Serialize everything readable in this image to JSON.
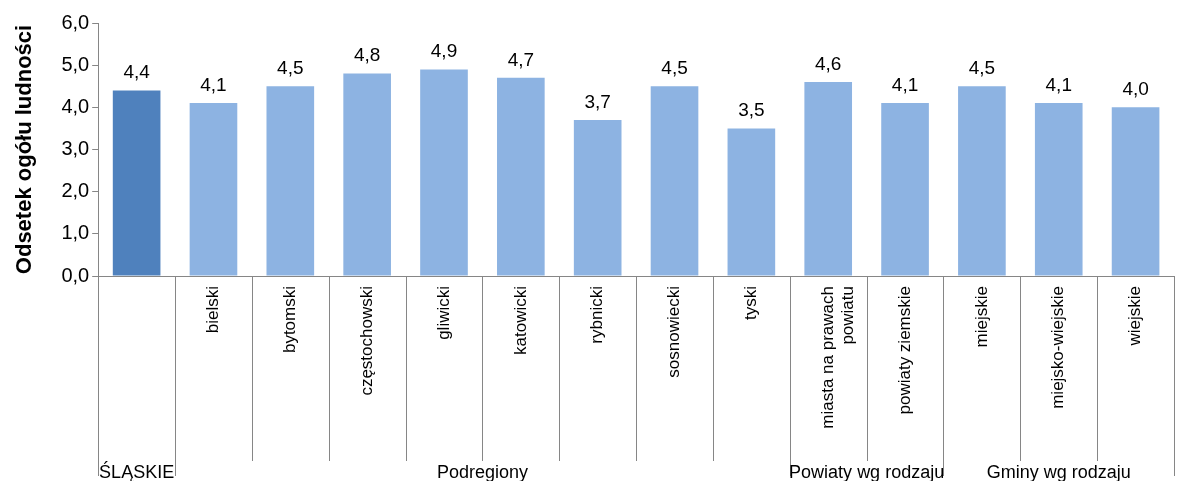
{
  "chart_data": {
    "type": "bar",
    "ylabel": "Odsetek ogółu ludności",
    "categories": [
      null,
      "bielski",
      "bytomski",
      "częstochowski",
      "gliwicki",
      "katowicki",
      "rybnicki",
      "sosnowiecki",
      "tyski",
      "miasta na prawach powiatu",
      "powiaty ziemskie",
      "miejskie",
      "miejsko-wiejskie",
      "wiejskie"
    ],
    "values": [
      4.4,
      4.1,
      4.5,
      4.8,
      4.9,
      4.7,
      3.7,
      4.5,
      3.5,
      4.6,
      4.1,
      4.5,
      4.1,
      4.0
    ],
    "colors": [
      "#4f81bd",
      "#8db3e2",
      "#8db3e2",
      "#8db3e2",
      "#8db3e2",
      "#8db3e2",
      "#8db3e2",
      "#8db3e2",
      "#8db3e2",
      "#8db3e2",
      "#8db3e2",
      "#8db3e2",
      "#8db3e2",
      "#8db3e2"
    ],
    "ylim": [
      0,
      6
    ],
    "yticks": [
      {
        "value": 0,
        "label": "0,0"
      },
      {
        "value": 1,
        "label": "1,0"
      },
      {
        "value": 2,
        "label": "2,0"
      },
      {
        "value": 3,
        "label": "3,0"
      },
      {
        "value": 4,
        "label": "4,0"
      },
      {
        "value": 5,
        "label": "5,0"
      },
      {
        "value": 6,
        "label": "6,0"
      }
    ],
    "value_labels": [
      "4,4",
      "4,1",
      "4,5",
      "4,8",
      "4,9",
      "4,7",
      "3,7",
      "4,5",
      "3,5",
      "4,6",
      "4,1",
      "4,5",
      "4,1",
      "4,0"
    ],
    "grid": false,
    "legend": false,
    "annotations": [
      "ŚLĄSKIE",
      "Podregiony",
      "Powiaty wg rodzaju",
      "Gminy wg rodzaju"
    ]
  }
}
